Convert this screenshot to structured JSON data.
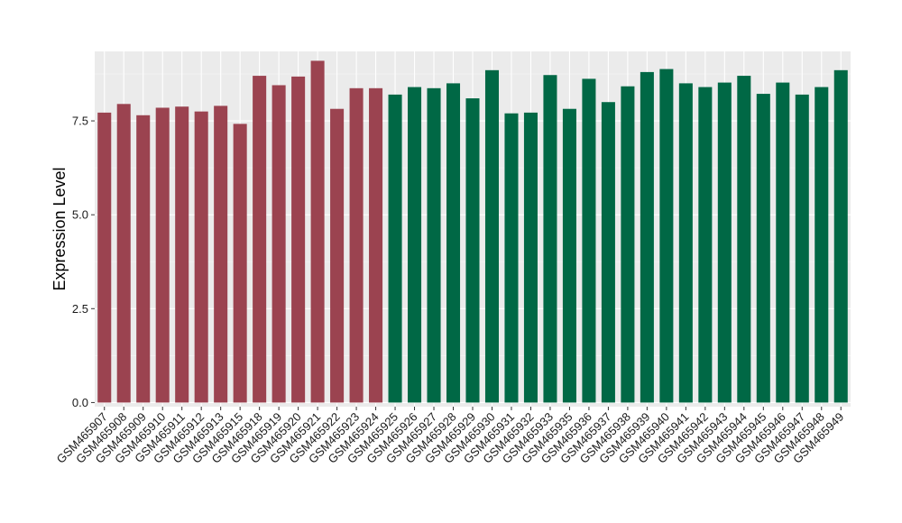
{
  "chart_data": {
    "type": "bar",
    "ylabel": "Expression Level",
    "xlabel": "",
    "ylim": [
      -0.11,
      9.35
    ],
    "yticks": [
      0.0,
      2.5,
      5.0,
      7.5
    ],
    "ytick_labels": [
      "0.0",
      "2.5",
      "5.0",
      "7.5"
    ],
    "grid": true,
    "background": "#ebebeb",
    "group_colors": [
      "#9b4350",
      "#006845"
    ],
    "categories": [
      "GSM465907",
      "GSM465908",
      "GSM465909",
      "GSM465910",
      "GSM465911",
      "GSM465912",
      "GSM465913",
      "GSM465915",
      "GSM465918",
      "GSM465919",
      "GSM465920",
      "GSM465921",
      "GSM465922",
      "GSM465923",
      "GSM465924",
      "GSM465925",
      "GSM465926",
      "GSM465927",
      "GSM465928",
      "GSM465929",
      "GSM465930",
      "GSM465931",
      "GSM465932",
      "GSM465933",
      "GSM465935",
      "GSM465936",
      "GSM465937",
      "GSM465938",
      "GSM465939",
      "GSM465940",
      "GSM465941",
      "GSM465942",
      "GSM465943",
      "GSM465944",
      "GSM465945",
      "GSM465946",
      "GSM465947",
      "GSM465948",
      "GSM465949"
    ],
    "values": [
      7.72,
      7.95,
      7.65,
      7.85,
      7.88,
      7.75,
      7.9,
      7.42,
      8.7,
      8.45,
      8.68,
      9.1,
      7.82,
      8.37,
      8.37,
      8.2,
      8.4,
      8.37,
      8.5,
      8.1,
      8.85,
      7.7,
      7.72,
      8.72,
      7.82,
      8.62,
      8.0,
      8.42,
      8.8,
      8.88,
      8.5,
      8.4,
      8.52,
      8.7,
      8.22,
      8.52,
      8.2,
      8.4,
      8.85
    ],
    "groups": [
      0,
      0,
      0,
      0,
      0,
      0,
      0,
      0,
      0,
      0,
      0,
      0,
      0,
      0,
      0,
      1,
      1,
      1,
      1,
      1,
      1,
      1,
      1,
      1,
      1,
      1,
      1,
      1,
      1,
      1,
      1,
      1,
      1,
      1,
      1,
      1,
      1,
      1,
      1
    ]
  }
}
